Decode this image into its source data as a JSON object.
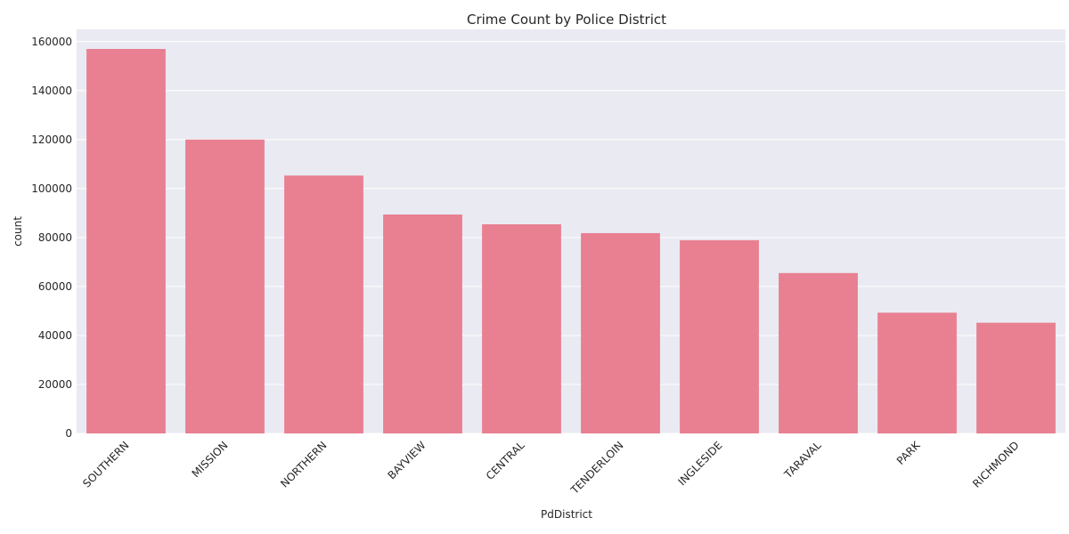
{
  "chart_data": {
    "type": "bar",
    "title": "Crime Count by Police District",
    "xlabel": "PdDistrict",
    "ylabel": "count",
    "categories": [
      "SOUTHERN",
      "MISSION",
      "NORTHERN",
      "BAYVIEW",
      "CENTRAL",
      "TENDERLOIN",
      "INGLESIDE",
      "TARAVAL",
      "PARK",
      "RICHMOND"
    ],
    "values": [
      157000,
      120000,
      105300,
      89400,
      85400,
      81800,
      78900,
      65500,
      49300,
      45200
    ],
    "ylim": [
      0,
      165000
    ],
    "yticks": [
      0,
      20000,
      40000,
      60000,
      80000,
      100000,
      120000,
      140000,
      160000
    ],
    "ytick_labels": [
      "0",
      "20000",
      "40000",
      "60000",
      "80000",
      "100000",
      "120000",
      "140000",
      "160000"
    ],
    "grid": "horizontal",
    "colors": {
      "bar": "#e88092",
      "background": "#eaeaf2",
      "grid": "#ffffff"
    }
  }
}
